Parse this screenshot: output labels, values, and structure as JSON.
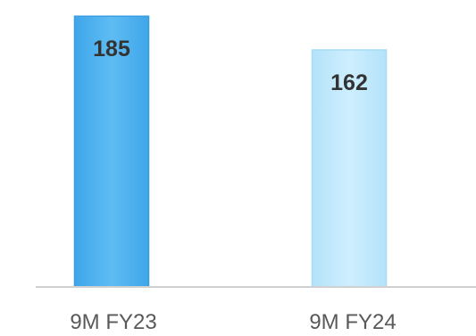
{
  "chart_data": {
    "type": "bar",
    "categories": [
      "9M FY23",
      "9M FY24"
    ],
    "values": [
      185,
      162
    ],
    "data_labels": [
      "185",
      "162"
    ],
    "title": "",
    "xlabel": "",
    "ylabel": "",
    "ylim": [
      0,
      190
    ],
    "grid": false,
    "legend": "none",
    "colors": {
      "bars": [
        "#5bb8f0",
        "#c6ecfd"
      ],
      "bar_edges": [
        "#3a9de0",
        "#a6dcf5"
      ],
      "axis": "#d0d0d0",
      "labels": "#333333",
      "ticks": "#595959"
    }
  }
}
